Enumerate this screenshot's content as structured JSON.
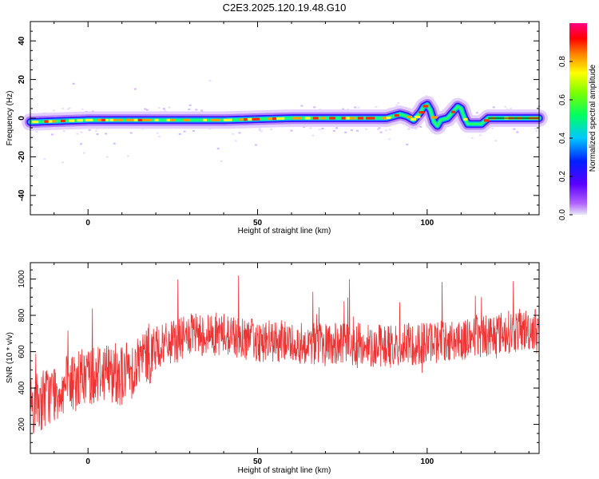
{
  "title": "C2E3.2025.120.19.48.G10",
  "chart_data": [
    {
      "type": "heatmap",
      "xlabel": "Height of straight line (km)",
      "ylabel": "Frequency (Hz)",
      "xlim": [
        -17,
        133
      ],
      "ylim": [
        -50,
        50
      ],
      "x_ticks": [
        0,
        50,
        100
      ],
      "y_ticks": [
        -40,
        -20,
        0,
        20,
        40
      ],
      "colorbar": {
        "label": "Normalized spectral amplitude",
        "range": [
          0,
          1
        ],
        "ticks": [
          0.0,
          0.2,
          0.4,
          0.6,
          0.8
        ]
      },
      "ridge": {
        "description_points_x_km": [
          -17,
          0,
          20,
          40,
          60,
          80,
          88,
          90,
          92,
          94,
          96,
          97,
          98,
          99,
          100,
          101,
          102,
          103,
          104,
          106,
          108,
          109,
          110,
          111,
          112,
          114,
          116,
          118,
          120,
          125,
          133
        ],
        "frequency_hz": [
          -2,
          -1,
          -1,
          -1,
          0,
          0,
          0,
          1,
          2,
          1,
          -1,
          1,
          3,
          6,
          7,
          4,
          -2,
          -4,
          -1,
          0,
          4,
          6,
          5,
          0,
          -3,
          -3,
          -3,
          0,
          0,
          0,
          0
        ]
      },
      "grid": false,
      "legend": "none"
    },
    {
      "type": "line",
      "xlabel": "Height of straight line (km)",
      "ylabel": "SNR (10 * v/v)",
      "xlim": [
        -17,
        133
      ],
      "ylim": [
        40,
        1090
      ],
      "x_ticks": [
        0,
        50,
        100
      ],
      "y_ticks": [
        200,
        400,
        600,
        800,
        1000
      ],
      "series": [
        {
          "color": "#ee3333",
          "x": [
            -17,
            -10,
            -5,
            0,
            5,
            10,
            15,
            20,
            25,
            30,
            40,
            50,
            60,
            70,
            80,
            90,
            100,
            110,
            120,
            133
          ],
          "y": [
            300,
            380,
            420,
            470,
            500,
            470,
            540,
            620,
            650,
            690,
            700,
            660,
            650,
            640,
            640,
            630,
            650,
            670,
            700,
            730
          ]
        }
      ],
      "grid": false,
      "legend": "none"
    }
  ]
}
